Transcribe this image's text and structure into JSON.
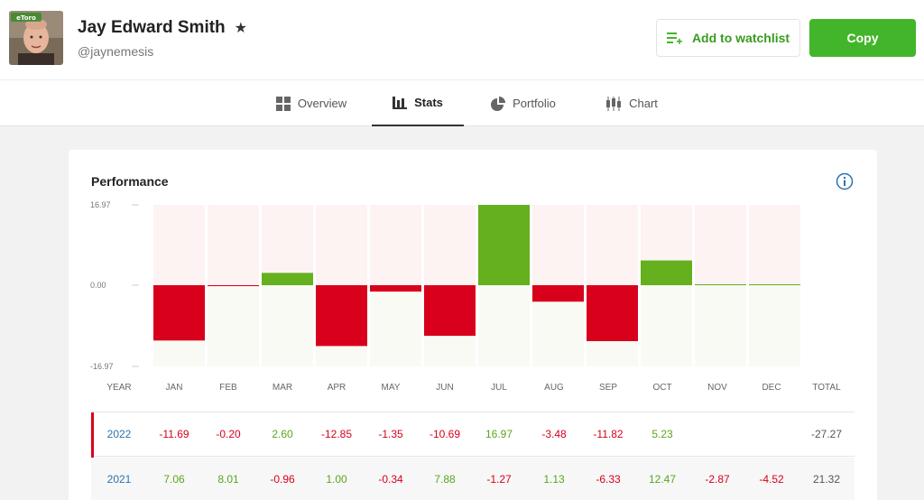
{
  "profile": {
    "name": "Jay Edward Smith",
    "handle": "@jaynemesis",
    "avatar_badge": "eToro"
  },
  "actions": {
    "watchlist_label": "Add to watchlist",
    "copy_label": "Copy"
  },
  "tabs": [
    {
      "label": "Overview",
      "icon": "grid-icon"
    },
    {
      "label": "Stats",
      "icon": "bar-chart-icon",
      "active": true
    },
    {
      "label": "Portfolio",
      "icon": "pie-chart-icon"
    },
    {
      "label": "Chart",
      "icon": "candlestick-icon"
    }
  ],
  "performance": {
    "title": "Performance",
    "headers": [
      "YEAR",
      "JAN",
      "FEB",
      "MAR",
      "APR",
      "MAY",
      "JUN",
      "JUL",
      "AUG",
      "SEP",
      "OCT",
      "NOV",
      "DEC",
      "TOTAL"
    ],
    "rows": [
      {
        "year": "2022",
        "values": [
          "-11.69",
          "-0.20",
          "2.60",
          "-12.85",
          "-1.35",
          "-10.69",
          "16.97",
          "-3.48",
          "-11.82",
          "5.23",
          "",
          ""
        ],
        "total": "-27.27"
      },
      {
        "year": "2021",
        "values": [
          "7.06",
          "8.01",
          "-0.96",
          "1.00",
          "-0.34",
          "7.88",
          "-1.27",
          "1.13",
          "-6.33",
          "12.47",
          "-2.87",
          "-4.52"
        ],
        "total": "21.32"
      }
    ]
  },
  "chart_data": {
    "type": "bar",
    "categories": [
      "JAN",
      "FEB",
      "MAR",
      "APR",
      "MAY",
      "JUN",
      "JUL",
      "AUG",
      "SEP",
      "OCT",
      "NOV",
      "DEC"
    ],
    "series": [
      {
        "name": "2022",
        "values": [
          -11.69,
          -0.2,
          2.6,
          -12.85,
          -1.35,
          -10.69,
          16.97,
          -3.48,
          -11.82,
          5.23,
          0,
          0
        ]
      }
    ],
    "ytick_labels": [
      "16.97",
      "0.00",
      "-16.97"
    ],
    "ylim": [
      -16.97,
      16.97
    ],
    "colors": {
      "positive": "#65b01e",
      "negative": "#d8001b",
      "bg_positive_zone": "#fdf3f3",
      "bg_negative_zone": "#f9faf4"
    }
  }
}
